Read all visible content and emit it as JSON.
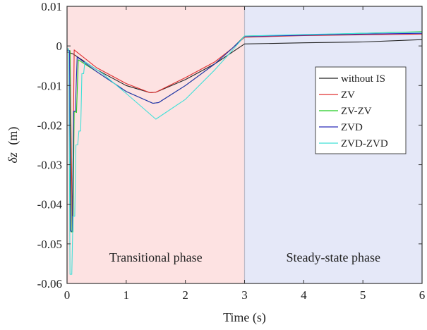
{
  "chart_data": {
    "type": "line",
    "xlabel": "Time (s)",
    "ylabel_symbol": "δz",
    "ylabel_unit": "(m)",
    "xlim": [
      0,
      6
    ],
    "ylim": [
      -0.06,
      0.01
    ],
    "xticks": [
      0,
      1,
      2,
      3,
      4,
      5,
      6
    ],
    "xtick_labels": [
      "0",
      "1",
      "2",
      "3",
      "4",
      "5",
      "6"
    ],
    "yticks": [
      0.01,
      0,
      -0.01,
      -0.02,
      -0.03,
      -0.04,
      -0.05,
      -0.06
    ],
    "ytick_labels": [
      "0.01",
      "0",
      "-0.01",
      "-0.02",
      "-0.03",
      "-0.04",
      "-0.05",
      "-0.06"
    ],
    "grid": false,
    "legend_position": "right",
    "regions": [
      {
        "label": "Transitional phase",
        "x_start": 0,
        "x_end": 3,
        "color": "#fde2e2"
      },
      {
        "label": "Steady-state phase",
        "x_start": 3,
        "x_end": 6,
        "color": "#e5e8f8"
      }
    ],
    "series": [
      {
        "name": "without IS",
        "color": "#222222",
        "points": [
          [
            0,
            -0.0015
          ],
          [
            0.1,
            -0.002
          ],
          [
            0.5,
            -0.006
          ],
          [
            1.0,
            -0.01
          ],
          [
            1.4,
            -0.0118
          ],
          [
            1.5,
            -0.0117
          ],
          [
            2.0,
            -0.0085
          ],
          [
            2.5,
            -0.0045
          ],
          [
            2.8,
            -0.0015
          ],
          [
            3.0,
            0.0005
          ],
          [
            4.0,
            0.0008
          ],
          [
            5.0,
            0.001
          ],
          [
            6.0,
            0.0016
          ]
        ]
      },
      {
        "name": "ZV",
        "color": "#e03030",
        "points": [
          [
            0,
            -0.001
          ],
          [
            0.05,
            -0.0012
          ],
          [
            0.09,
            -0.0465
          ],
          [
            0.12,
            -0.001
          ],
          [
            0.5,
            -0.0055
          ],
          [
            1.0,
            -0.0095
          ],
          [
            1.4,
            -0.0118
          ],
          [
            1.5,
            -0.0117
          ],
          [
            2.0,
            -0.008
          ],
          [
            2.5,
            -0.004
          ],
          [
            2.8,
            -0.0005
          ],
          [
            3.0,
            0.0022
          ],
          [
            4.0,
            0.0026
          ],
          [
            5.0,
            0.0028
          ],
          [
            6.0,
            0.003
          ]
        ]
      },
      {
        "name": "ZV-ZV",
        "color": "#22cc22",
        "points": [
          [
            0,
            -0.001
          ],
          [
            0.05,
            -0.0012
          ],
          [
            0.07,
            -0.047
          ],
          [
            0.1,
            -0.047
          ],
          [
            0.12,
            -0.0165
          ],
          [
            0.16,
            -0.0168
          ],
          [
            0.19,
            -0.0035
          ],
          [
            0.5,
            -0.0065
          ],
          [
            1.0,
            -0.0115
          ],
          [
            1.45,
            -0.0145
          ],
          [
            1.55,
            -0.0143
          ],
          [
            2.0,
            -0.01
          ],
          [
            2.5,
            -0.0045
          ],
          [
            2.8,
            -0.0005
          ],
          [
            3.0,
            0.0025
          ],
          [
            4.0,
            0.0028
          ],
          [
            5.0,
            0.0032
          ],
          [
            6.0,
            0.0036
          ]
        ]
      },
      {
        "name": "ZVD",
        "color": "#2a2ab8",
        "points": [
          [
            0,
            -0.001
          ],
          [
            0.04,
            -0.0012
          ],
          [
            0.06,
            -0.0468
          ],
          [
            0.09,
            -0.0468
          ],
          [
            0.11,
            -0.0165
          ],
          [
            0.14,
            -0.0165
          ],
          [
            0.17,
            -0.0028
          ],
          [
            0.5,
            -0.0065
          ],
          [
            1.0,
            -0.0115
          ],
          [
            1.45,
            -0.0145
          ],
          [
            1.55,
            -0.0143
          ],
          [
            2.0,
            -0.01
          ],
          [
            2.5,
            -0.0045
          ],
          [
            2.8,
            -0.0005
          ],
          [
            3.0,
            0.0024
          ],
          [
            4.0,
            0.0027
          ],
          [
            5.0,
            0.003
          ],
          [
            6.0,
            0.0032
          ]
        ]
      },
      {
        "name": "ZVD-ZVD",
        "color": "#40e0d8",
        "points": [
          [
            0,
            -0.0005
          ],
          [
            0.03,
            -0.0008
          ],
          [
            0.05,
            -0.0577
          ],
          [
            0.08,
            -0.0577
          ],
          [
            0.1,
            -0.043
          ],
          [
            0.13,
            -0.043
          ],
          [
            0.15,
            -0.025
          ],
          [
            0.18,
            -0.025
          ],
          [
            0.2,
            -0.0215
          ],
          [
            0.23,
            -0.0215
          ],
          [
            0.25,
            -0.007
          ],
          [
            0.28,
            -0.007
          ],
          [
            0.3,
            -0.004
          ],
          [
            0.6,
            -0.007
          ],
          [
            1.0,
            -0.012
          ],
          [
            1.5,
            -0.0185
          ],
          [
            2.0,
            -0.0135
          ],
          [
            2.5,
            -0.006
          ],
          [
            2.8,
            -0.001
          ],
          [
            3.0,
            0.0025
          ],
          [
            4.0,
            0.0029
          ],
          [
            5.0,
            0.0032
          ],
          [
            6.0,
            0.0035
          ]
        ]
      }
    ]
  }
}
